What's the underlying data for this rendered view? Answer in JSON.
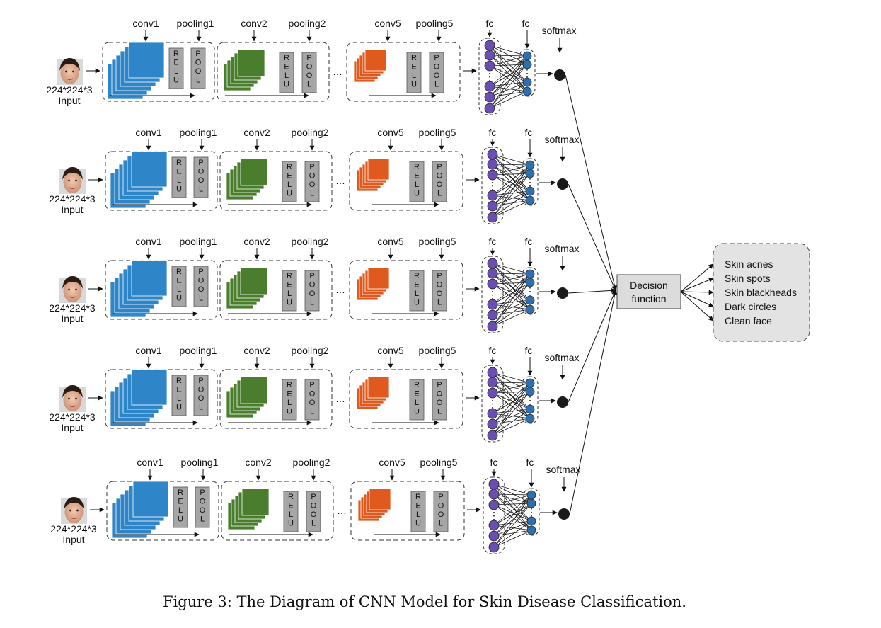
{
  "rows": [
    {
      "input_size": "224*224*3",
      "input_label": "Input",
      "conv1": "conv1",
      "pooling1": "pooling1",
      "conv2": "conv2",
      "pooling2": "pooling2",
      "conv5": "conv5",
      "pooling5": "pooling5",
      "fc1": "fc",
      "fc2": "fc",
      "softmax": "softmax"
    },
    {
      "input_size": "224*224*3",
      "input_label": "Input",
      "conv1": "conv1",
      "pooling1": "pooling1",
      "conv2": "conv2",
      "pooling2": "pooling2",
      "conv5": "conv5",
      "pooling5": "pooling5",
      "fc1": "fc",
      "fc2": "fc",
      "softmax": "softmax"
    },
    {
      "input_size": "224*224*3",
      "input_label": "Input",
      "conv1": "conv1",
      "pooling1": "pooling1",
      "conv2": "conv2",
      "pooling2": "pooling2",
      "conv5": "conv5",
      "pooling5": "pooling5",
      "fc1": "fc",
      "fc2": "fc",
      "softmax": "softmax"
    },
    {
      "input_size": "224*224*3",
      "input_label": "Input",
      "conv1": "conv1",
      "pooling1": "pooling1",
      "conv2": "conv2",
      "pooling2": "pooling2",
      "conv5": "conv5",
      "pooling5": "pooling5",
      "fc1": "fc",
      "fc2": "fc",
      "softmax": "softmax"
    },
    {
      "input_size": "224*224*3",
      "input_label": "Input",
      "conv1": "conv1",
      "pooling1": "pooling1",
      "conv2": "conv2",
      "pooling2": "pooling2",
      "conv5": "conv5",
      "pooling5": "pooling5",
      "fc1": "fc",
      "fc2": "fc",
      "softmax": "softmax"
    }
  ],
  "block_letters": {
    "relu": "RELU",
    "pool": "POOL"
  },
  "ellipsis": "…",
  "decision": {
    "line1": "Decision",
    "line2": "function"
  },
  "outputs": [
    "Skin acnes",
    "Skin spots",
    "Skin blackheads",
    "Dark circles",
    "Clean face"
  ],
  "caption": "Figure 3: The Diagram of CNN Model for Skin Disease Classification.",
  "colors": {
    "conv1": "#2e86c8",
    "conv2": "#4a7d2c",
    "conv5": "#e05a1e",
    "block_gray": "#a6a6a6",
    "fc1_node": "#6a4fb0",
    "fc2_node": "#2e6fb0",
    "softmax_node": "#1a1a1a",
    "decision_fill": "#dcdcdc",
    "output_fill": "#e3e3e3"
  }
}
